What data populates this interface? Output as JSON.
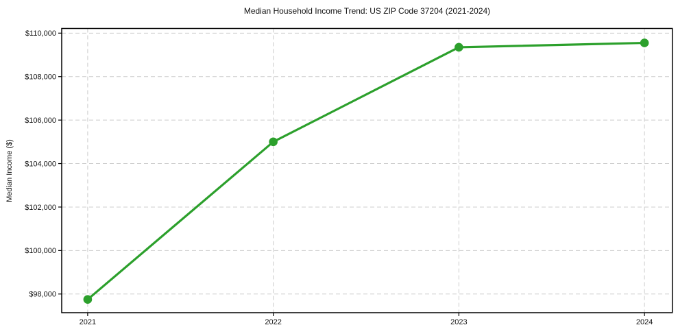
{
  "chart": {
    "title": "Median Household Income Trend: US ZIP Code 37204 (2021-2024)",
    "ylabel": "Median Income ($)"
  },
  "chart_data": {
    "type": "line",
    "title": "Median Household Income Trend: US ZIP Code 37204 (2021-2024)",
    "xlabel": "",
    "ylabel": "Median Income ($)",
    "x": [
      2021,
      2022,
      2023,
      2024
    ],
    "values": [
      97750,
      105000,
      109350,
      109550
    ],
    "x_tick_labels": [
      "2021",
      "2022",
      "2023",
      "2024"
    ],
    "y_ticks": [
      98000,
      100000,
      102000,
      104000,
      106000,
      108000,
      110000
    ],
    "y_tick_labels": [
      "$98,000",
      "$100,000",
      "$102,000",
      "$104,000",
      "$106,000",
      "$108,000",
      "$110,000"
    ],
    "xlim": [
      2020.86,
      2024.15
    ],
    "ylim": [
      97141,
      110215
    ],
    "grid": true,
    "grid_style": "dashed",
    "legend": null,
    "colors": {
      "line": "#2ca02c",
      "marker": "#2ca02c",
      "grid": "#cccccc",
      "spine": "#000000",
      "background": "#ffffff",
      "text": "#111111"
    }
  }
}
